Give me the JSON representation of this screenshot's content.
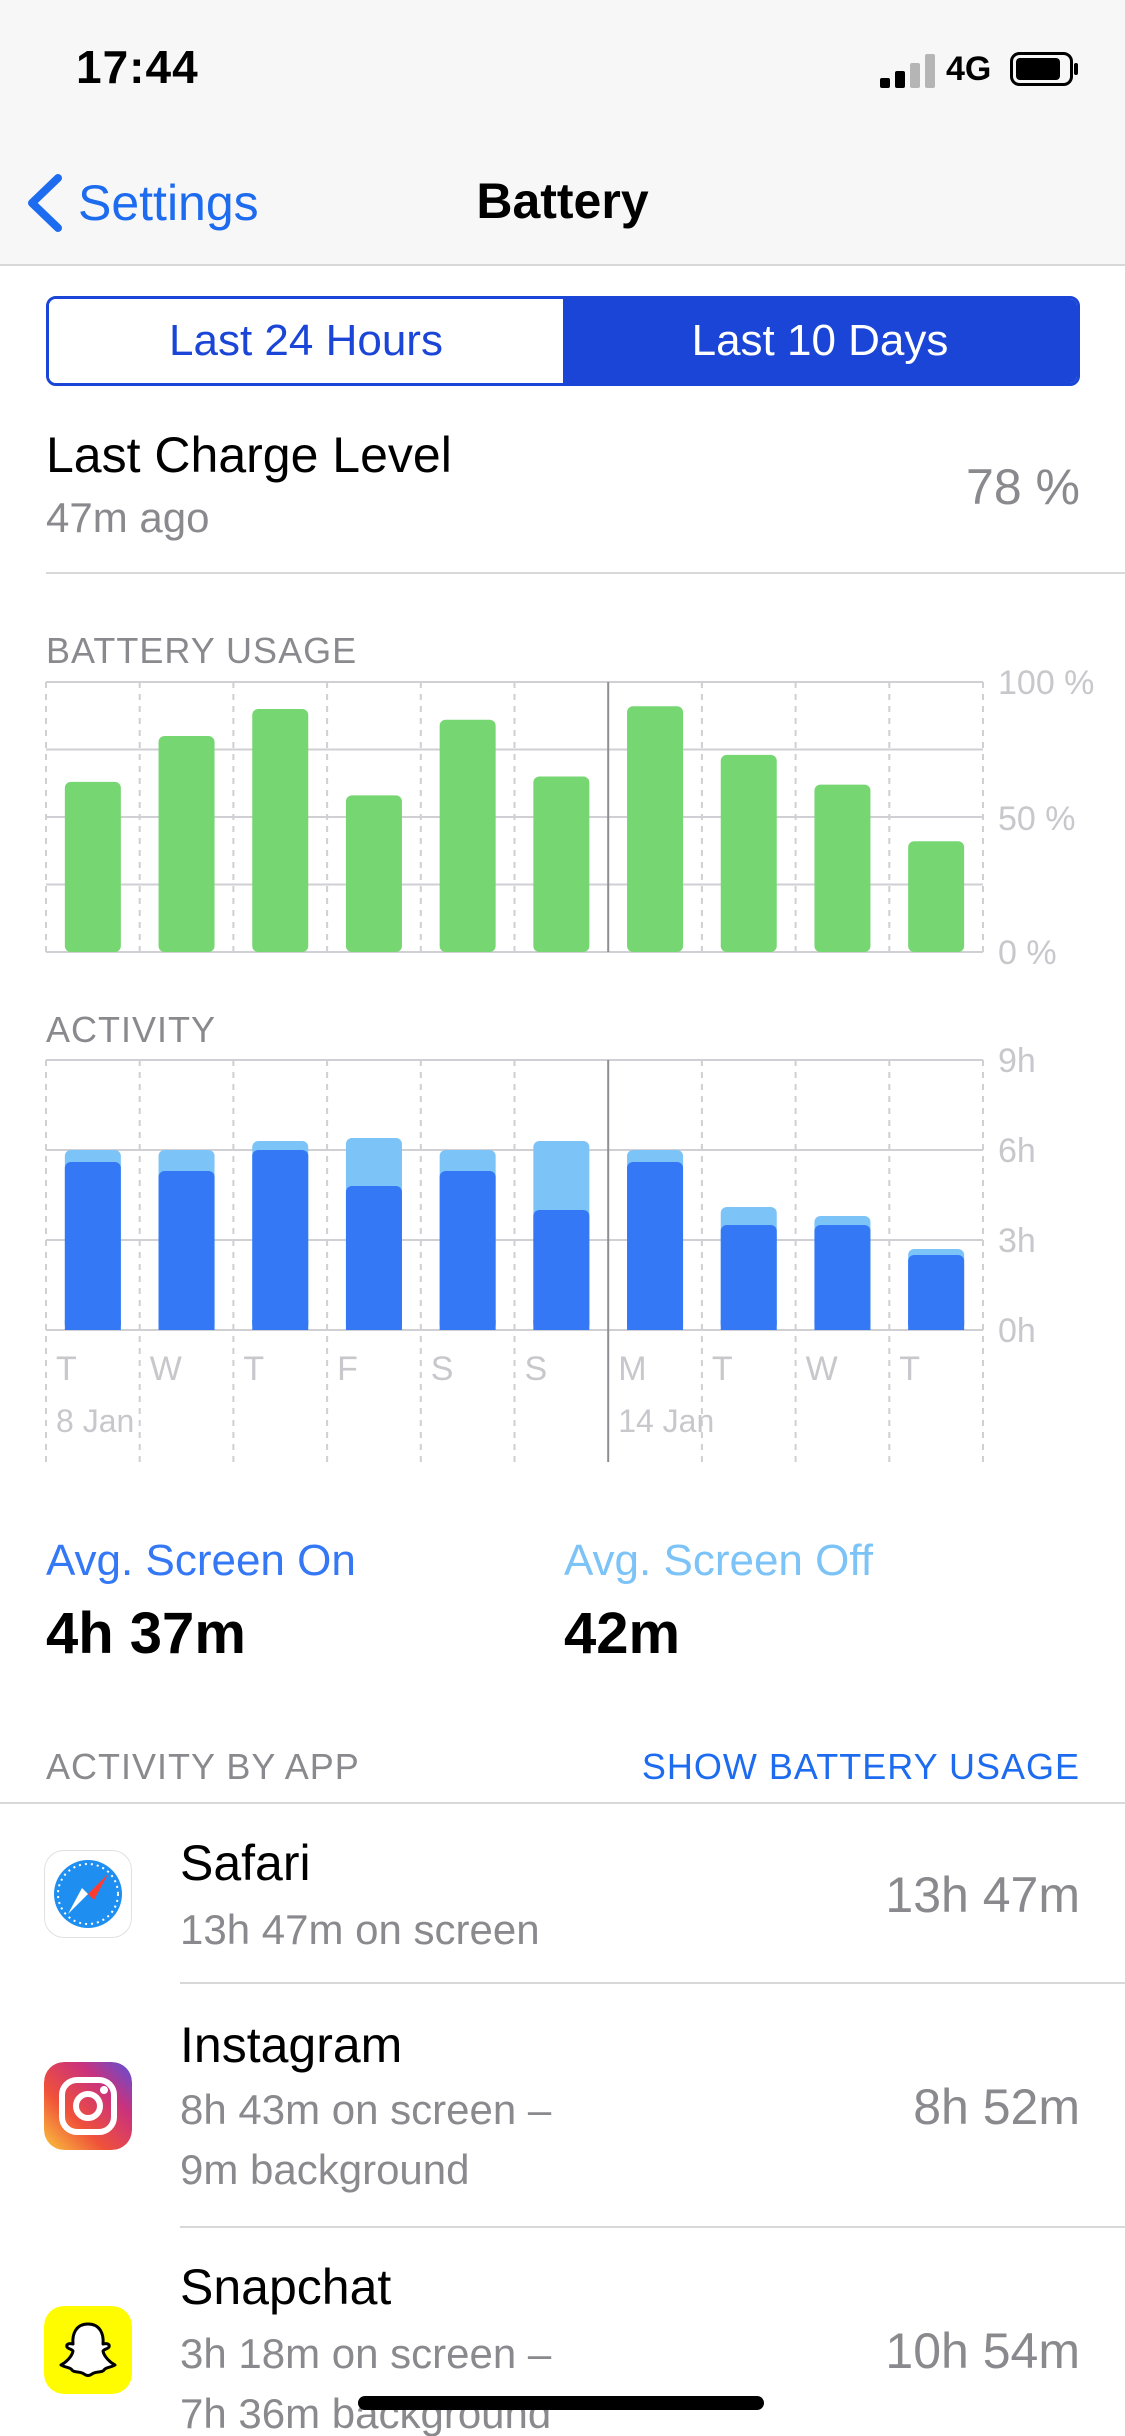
{
  "status_bar": {
    "time": "17:44",
    "network": "4G"
  },
  "nav": {
    "back_label": "Settings",
    "title": "Battery"
  },
  "segmented": {
    "left_label": "Last 24 Hours",
    "right_label": "Last 10 Days",
    "selected": "right"
  },
  "last_charge": {
    "title": "Last Charge Level",
    "ago": "47m ago",
    "value": "78 %"
  },
  "battery_usage": {
    "label": "BATTERY USAGE",
    "axis": [
      "100 %",
      "50 %",
      "0 %"
    ]
  },
  "activity": {
    "label": "ACTIVITY",
    "axis": [
      "9h",
      "6h",
      "3h",
      "0h"
    ]
  },
  "chart_data": [
    {
      "type": "bar",
      "title": "BATTERY USAGE",
      "categories": [
        "T",
        "W",
        "T",
        "F",
        "S",
        "S",
        "M",
        "T",
        "W",
        "T"
      ],
      "values": [
        63,
        80,
        90,
        58,
        86,
        65,
        91,
        73,
        62,
        41
      ],
      "ylim": [
        0,
        100
      ],
      "ytick_labels": [
        "100 %",
        "50 %",
        "0 %"
      ],
      "color": "#76d672",
      "grid": true
    },
    {
      "type": "bar",
      "stacked": true,
      "title": "ACTIVITY",
      "categories": [
        "T",
        "W",
        "T",
        "F",
        "S",
        "S",
        "M",
        "T",
        "W",
        "T"
      ],
      "date_labels": [
        "8 Jan",
        "14 Jan"
      ],
      "series": [
        {
          "name": "Avg. Screen On",
          "color": "#3478f6",
          "values": [
            5.6,
            5.3,
            6.0,
            4.8,
            5.3,
            4.0,
            5.6,
            3.5,
            3.5,
            2.5
          ]
        },
        {
          "name": "Avg. Screen Off",
          "color": "#7cc3f7",
          "values": [
            0.4,
            0.7,
            0.3,
            1.6,
            0.7,
            2.3,
            0.4,
            0.6,
            0.3,
            0.2
          ]
        }
      ],
      "ylim": [
        0,
        9
      ],
      "ytick_labels": [
        "9h",
        "6h",
        "3h",
        "0h"
      ],
      "grid": true
    }
  ],
  "averages": {
    "on_label": "Avg. Screen On",
    "on_value": "4h 37m",
    "on_color": "#3478f6",
    "off_label": "Avg. Screen Off",
    "off_value": "42m",
    "off_color": "#7cc3f7"
  },
  "app_list": {
    "header": "ACTIVITY BY APP",
    "toggle": "SHOW BATTERY USAGE",
    "apps": [
      {
        "name": "Safari",
        "line1": "13h 47m on screen",
        "line2": "",
        "total": "13h 47m",
        "icon": "safari-icon"
      },
      {
        "name": "Instagram",
        "line1": "8h 43m on screen –",
        "line2": "9m background",
        "total": "8h 52m",
        "icon": "instagram-icon"
      },
      {
        "name": "Snapchat",
        "line1": "3h 18m on screen –",
        "line2": "7h 36m background",
        "total": "10h 54m",
        "icon": "snapchat-icon"
      }
    ]
  }
}
